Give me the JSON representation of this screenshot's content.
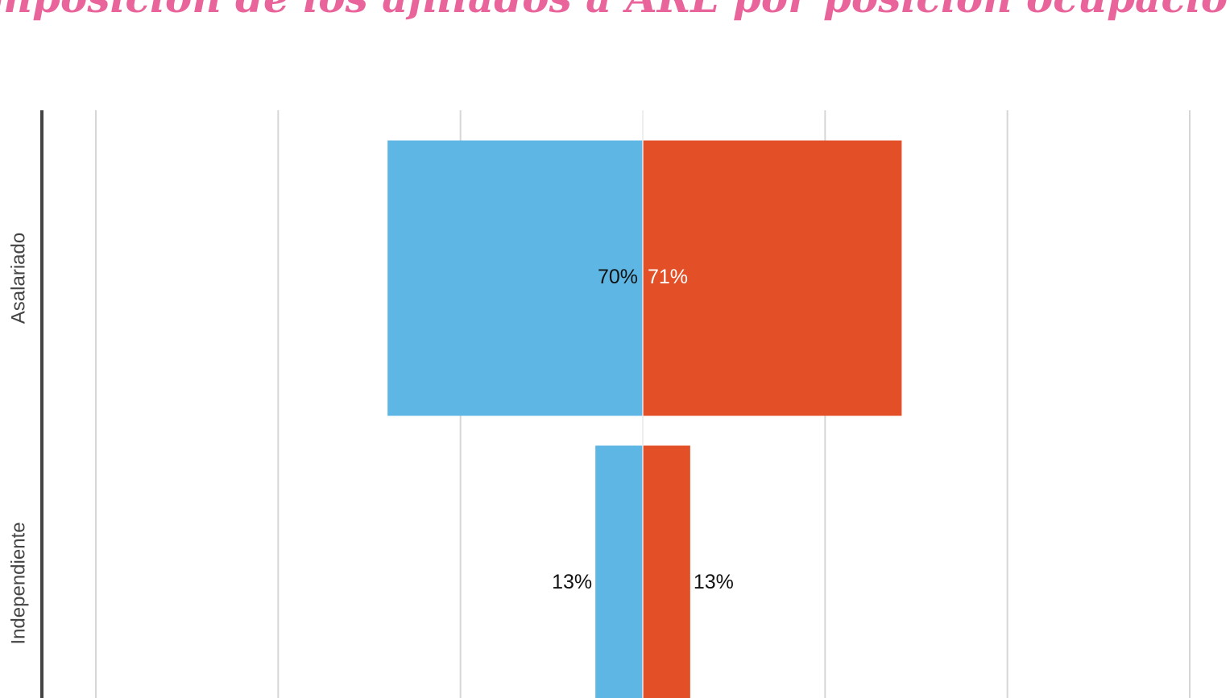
{
  "chart_data": {
    "type": "butterfly",
    "title": "Composición de los afiliados a ARL por posición ocupacional",
    "categories": [
      "Asalariado",
      "Independiente"
    ],
    "series": [
      {
        "color": "#5eb6e4",
        "values": [
          70,
          13
        ],
        "value_labels": [
          "70%",
          "13%"
        ]
      },
      {
        "color": "#e34f26",
        "values": [
          71,
          13
        ],
        "value_labels": [
          "71%",
          "13%"
        ]
      }
    ],
    "xlim": [
      -150,
      150
    ],
    "xticks": [
      -150,
      -100,
      -50,
      0,
      50,
      100,
      150
    ],
    "grid": true
  }
}
